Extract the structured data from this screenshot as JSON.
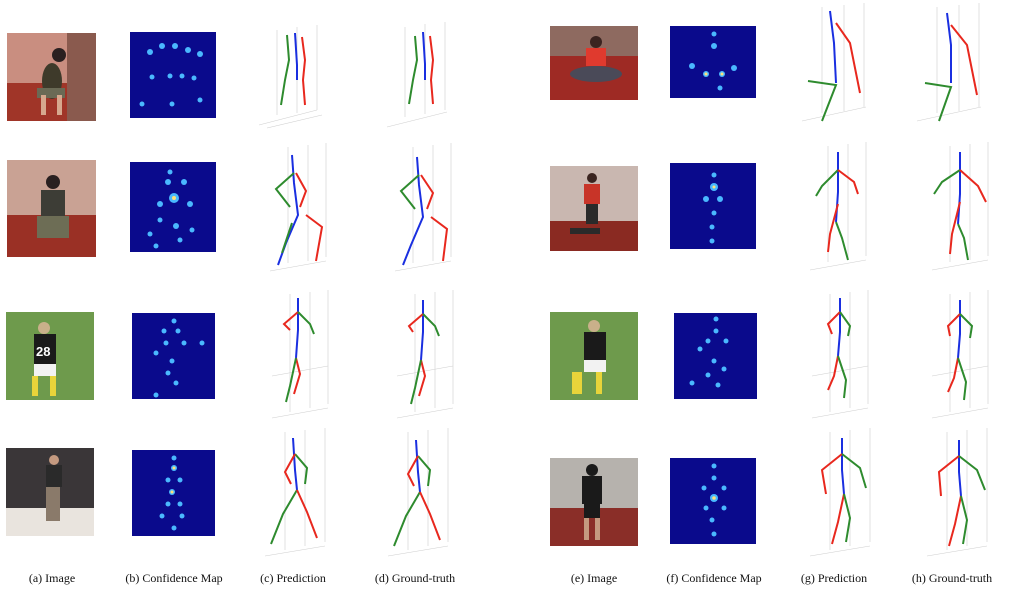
{
  "captions": {
    "a": "(a) Image",
    "b": "(b) Confidence Map",
    "c": "(c) Prediction",
    "d": "(d) Ground-truth",
    "e": "(e) Image",
    "f": "(f) Confidence Map",
    "g": "(g) Prediction",
    "h": "(h) Ground-truth"
  },
  "jersey_number": "28",
  "colors": {
    "left_limb": "#2e8b2e",
    "right_limb": "#e8281e",
    "torso": "#1a2fe0",
    "heatmap_bg": "#0a0a8c",
    "heatmap_peak": "#7dfcff"
  }
}
